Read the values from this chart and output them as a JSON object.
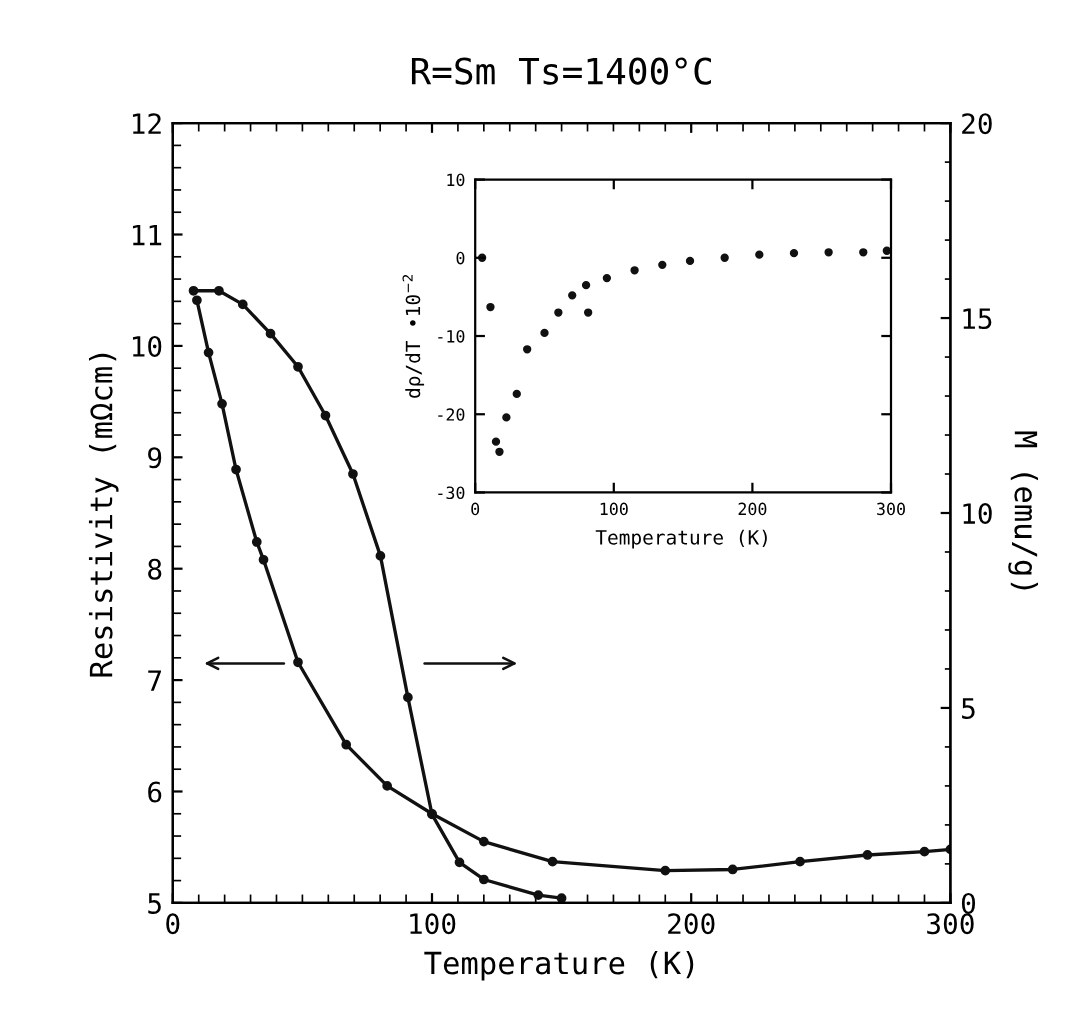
{
  "chart_data": [
    {
      "type": "line",
      "title": "R=Sm Ts=1400°C",
      "xlabel": "Temperature (K)",
      "ylabel": "Resistivity (mΩcm)",
      "y2label": "M (emu/g)",
      "xlim": [
        0,
        300
      ],
      "xticks": [
        0,
        100,
        200,
        300
      ],
      "ylim": [
        5,
        12
      ],
      "yticks": [
        5,
        6,
        7,
        8,
        9,
        10,
        11,
        12
      ],
      "y2lim": [
        0,
        20
      ],
      "y2ticks": [
        0,
        5,
        10,
        15,
        20
      ],
      "marker": "circle",
      "line_style": "solid",
      "grid": false,
      "legend": false,
      "series": [
        {
          "color": "#111111",
          "x": [
            9.3,
            13.8,
            19,
            24.4,
            32.4,
            35,
            48.3,
            66.9,
            82.7,
            100,
            120,
            146.5,
            190,
            216,
            242,
            268,
            290,
            300
          ],
          "values": [
            10.41,
            9.94,
            9.48,
            8.89,
            8.24,
            8.08,
            7.16,
            6.42,
            6.05,
            5.8,
            5.55,
            5.37,
            5.29,
            5.3,
            5.37,
            5.43,
            5.46,
            5.48
          ]
        },
        {
          "color": "#111111",
          "axis": "y2",
          "x": [
            8,
            17.8,
            27,
            37.7,
            48.3,
            58.9,
            69.5,
            80.1,
            90.7,
            100,
            110.6,
            120,
            141,
            150
          ],
          "values": [
            15.7,
            15.7,
            15.35,
            14.6,
            13.75,
            12.5,
            11.0,
            8.9,
            5.27,
            2.27,
            1.04,
            0.6,
            0.2,
            0.12
          ]
        }
      ]
    },
    {
      "type": "scatter",
      "xlabel": "Temperature (K)",
      "ylabel": "dρ/dT •10$^{−2}$",
      "xlim": [
        0,
        300
      ],
      "xticks": [
        0,
        100,
        200,
        300
      ],
      "ylim": [
        -30,
        10
      ],
      "yticks": [
        -30,
        -20,
        -10,
        0,
        10
      ],
      "grid": false,
      "marker": "circle",
      "series": [
        {
          "color": "#111111",
          "x": [
            5,
            11,
            15,
            17.5,
            22.5,
            30,
            37.5,
            50,
            60,
            70,
            80,
            81.5,
            95,
            115,
            135,
            155,
            180,
            205,
            230,
            255,
            280,
            297
          ],
          "values": [
            0,
            -6.3,
            -23.5,
            -24.8,
            -20.4,
            -17.4,
            -11.7,
            -9.6,
            -7.0,
            -4.8,
            -3.5,
            -7.0,
            -2.6,
            -1.6,
            -0.9,
            -0.4,
            0,
            0.4,
            0.6,
            0.7,
            0.7,
            0.9
          ]
        }
      ]
    }
  ]
}
